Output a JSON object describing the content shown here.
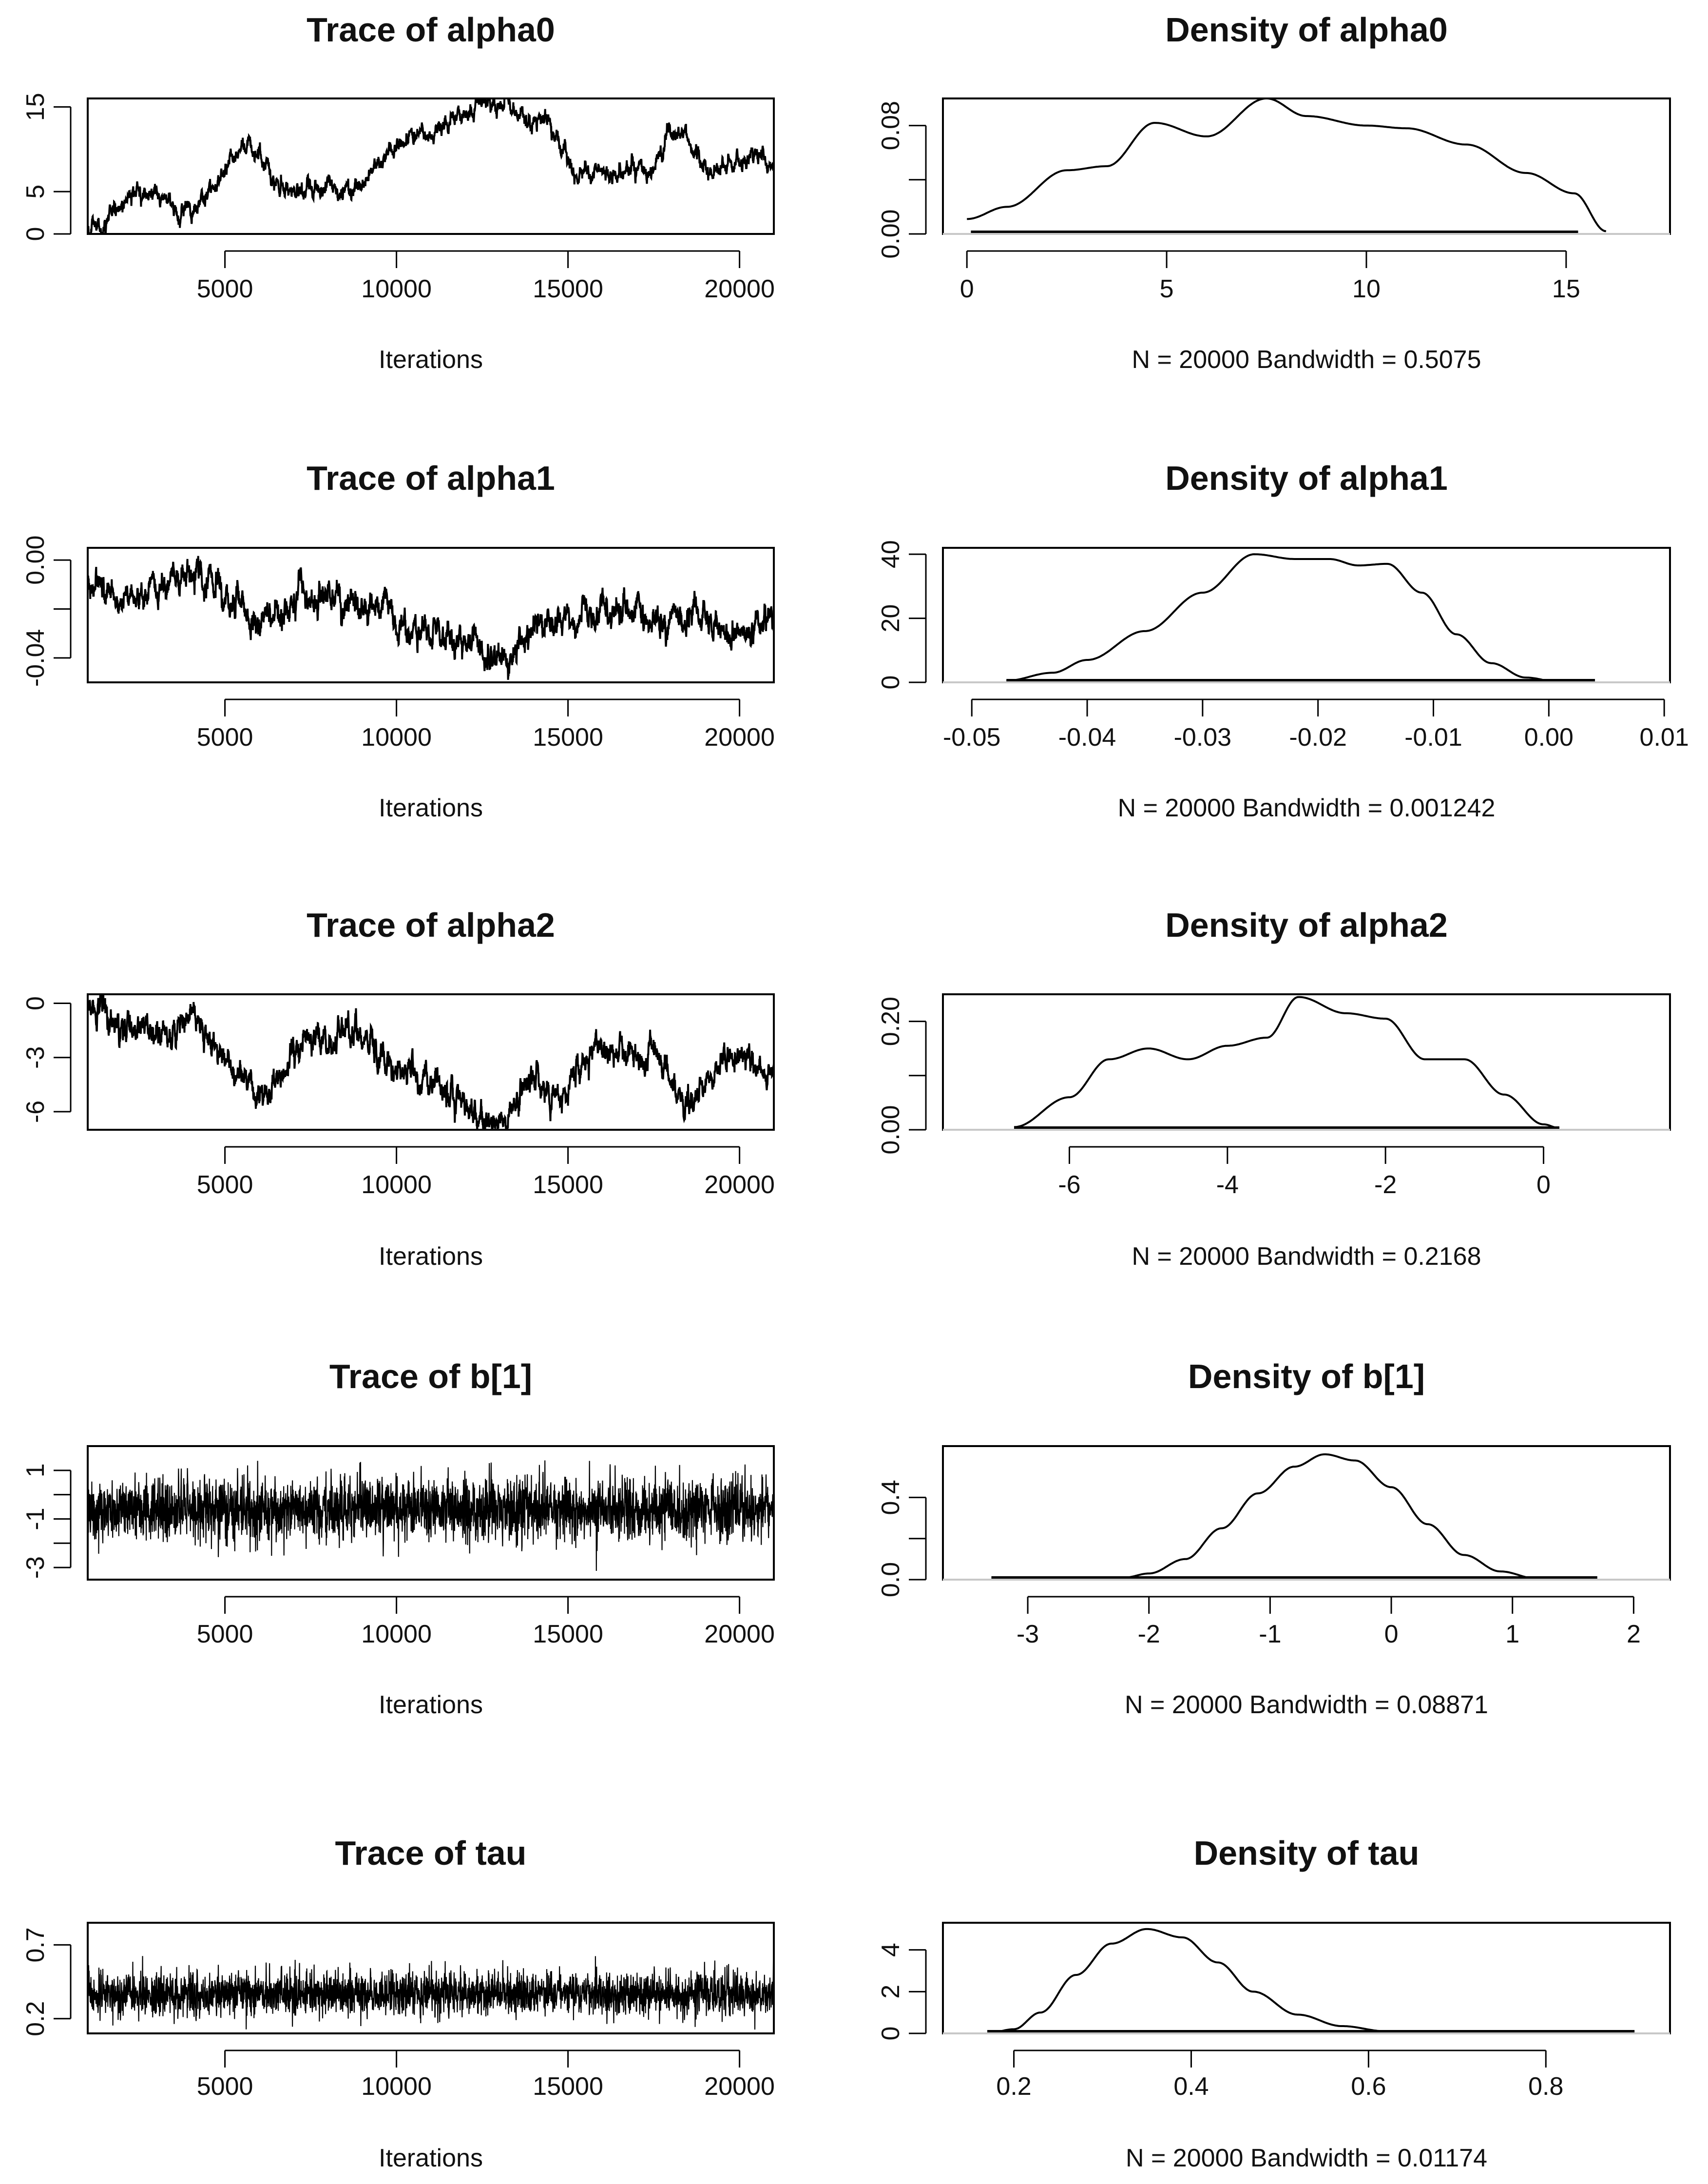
{
  "page": {
    "layout": "5 rows x 2 columns (trace plot | density plot)"
  },
  "chart_data": [
    {
      "type": "line",
      "kind": "trace",
      "title": "Trace of alpha0",
      "xlabel": "Iterations",
      "ylabel": "",
      "xlim": [
        1000,
        21000
      ],
      "ylim": [
        0,
        16
      ],
      "xticks": [
        5000,
        10000,
        15000,
        20000
      ],
      "xtick_labels": [
        "5000",
        "10000",
        "15000",
        "20000"
      ],
      "yticks": [
        0,
        5,
        15
      ],
      "ytick_labels": [
        "0",
        "5",
        "15"
      ],
      "anchors_x": [
        1000,
        2800,
        3800,
        5800,
        6800,
        8400,
        10800,
        12700,
        14300,
        15300,
        17400,
        18000,
        19400,
        20400,
        21000
      ],
      "anchors_y": [
        0.5,
        5,
        2.5,
        10.5,
        5,
        5.5,
        12,
        15.5,
        13.5,
        7,
        7.5,
        12,
        7.5,
        9.5,
        8
      ],
      "noise": 0.6
    },
    {
      "type": "line",
      "kind": "density",
      "title": "Density of alpha0",
      "xlabel": "N = 20000   Bandwidth = 0.5075",
      "ylabel": "",
      "xlim": [
        -0.6,
        17.6
      ],
      "ylim": [
        0,
        0.1
      ],
      "xticks": [
        0,
        5,
        10,
        15
      ],
      "xtick_labels": [
        "0",
        "5",
        "10",
        "15"
      ],
      "yticks": [
        0,
        0.04,
        0.08
      ],
      "ytick_labels": [
        "0.00",
        "",
        "0.08"
      ],
      "x": [
        0,
        1,
        2.5,
        3.5,
        4.7,
        6,
        7.5,
        8.5,
        10,
        11,
        12.5,
        14,
        15.2,
        16
      ],
      "y": [
        0.011,
        0.02,
        0.047,
        0.05,
        0.082,
        0.072,
        0.1,
        0.087,
        0.08,
        0.078,
        0.066,
        0.045,
        0.03,
        0.002
      ],
      "rug_from": 0.1,
      "rug_to": 15.3
    },
    {
      "type": "line",
      "kind": "trace",
      "title": "Trace of alpha1",
      "xlabel": "Iterations",
      "ylabel": "",
      "xlim": [
        1000,
        21000
      ],
      "ylim": [
        -0.05,
        0.005
      ],
      "xticks": [
        5000,
        10000,
        15000,
        20000
      ],
      "xtick_labels": [
        "5000",
        "10000",
        "15000",
        "20000"
      ],
      "yticks": [
        0,
        -0.02,
        -0.04
      ],
      "ytick_labels": [
        "0.00",
        "",
        "-0.04"
      ],
      "anchors_x": [
        1000,
        2000,
        4000,
        6000,
        7500,
        9000,
        11000,
        13000,
        14500,
        16500,
        18500,
        20000,
        21000
      ],
      "anchors_y": [
        -0.01,
        -0.015,
        -0.005,
        -0.025,
        -0.015,
        -0.018,
        -0.03,
        -0.04,
        -0.025,
        -0.02,
        -0.025,
        -0.03,
        -0.025
      ],
      "noise": 0.0035
    },
    {
      "type": "line",
      "kind": "density",
      "title": "Density of alpha1",
      "xlabel": "N = 20000   Bandwidth = 0.001242",
      "ylabel": "",
      "xlim": [
        -0.0525,
        0.0105
      ],
      "ylim": [
        0,
        42
      ],
      "xticks": [
        -0.05,
        -0.04,
        -0.03,
        -0.02,
        -0.01,
        0,
        0.01
      ],
      "xtick_labels": [
        "-0.05",
        "-0.04",
        "-0.03",
        "-0.02",
        "-0.01",
        "0.00",
        "0.01"
      ],
      "yticks": [
        0,
        20,
        40
      ],
      "ytick_labels": [
        "0",
        "20",
        "40"
      ],
      "x": [
        -0.047,
        -0.043,
        -0.04,
        -0.035,
        -0.03,
        -0.0255,
        -0.022,
        -0.019,
        -0.0165,
        -0.014,
        -0.011,
        -0.008,
        -0.005,
        -0.002,
        0.001
      ],
      "y": [
        0.5,
        3,
        7,
        16,
        28,
        40,
        38.5,
        38.5,
        36.5,
        37,
        28,
        15,
        6,
        1.5,
        0
      ],
      "rug_from": -0.047,
      "rug_to": 0.004
    },
    {
      "type": "line",
      "kind": "trace",
      "title": "Trace of alpha2",
      "xlabel": "Iterations",
      "ylabel": "",
      "xlim": [
        1000,
        21000
      ],
      "ylim": [
        -7,
        0.5
      ],
      "xticks": [
        5000,
        10000,
        15000,
        20000
      ],
      "xtick_labels": [
        "5000",
        "10000",
        "15000",
        "20000"
      ],
      "yticks": [
        0,
        -3,
        -6
      ],
      "ytick_labels": [
        "0",
        "-3",
        "-6"
      ],
      "anchors_x": [
        1000,
        2500,
        3800,
        6000,
        7500,
        9000,
        10500,
        12800,
        14000,
        14500,
        16000,
        17500,
        18500,
        19700,
        21000
      ],
      "anchors_y": [
        0,
        -1.5,
        -1,
        -5,
        -2,
        -2,
        -4,
        -6.5,
        -4.5,
        -5.5,
        -2.5,
        -3,
        -5.5,
        -3,
        -3.5
      ],
      "noise": 0.45
    },
    {
      "type": "line",
      "kind": "density",
      "title": "Density of alpha2",
      "xlabel": "N = 20000   Bandwidth = 0.2168",
      "ylabel": "",
      "xlim": [
        -7.6,
        1.6
      ],
      "ylim": [
        0,
        0.25
      ],
      "xticks": [
        -6,
        -4,
        -2,
        0
      ],
      "xtick_labels": [
        "-6",
        "-4",
        "-2",
        "0"
      ],
      "yticks": [
        0,
        0.1,
        0.2
      ],
      "ytick_labels": [
        "0.00",
        "",
        "0.20"
      ],
      "x": [
        -6.7,
        -6,
        -5.5,
        -5,
        -4.5,
        -4,
        -3.5,
        -3.1,
        -2.5,
        -2,
        -1.5,
        -1,
        -0.5,
        0,
        0.2
      ],
      "y": [
        0.005,
        0.06,
        0.13,
        0.15,
        0.13,
        0.155,
        0.17,
        0.245,
        0.215,
        0.205,
        0.13,
        0.13,
        0.065,
        0.01,
        0.003
      ],
      "rug_from": -6.7,
      "rug_to": 0.2
    },
    {
      "type": "line",
      "kind": "trace",
      "title": "Trace of b[1]",
      "xlabel": "Iterations",
      "ylabel": "",
      "xlim": [
        1000,
        21000
      ],
      "ylim": [
        -3.5,
        2
      ],
      "xticks": [
        5000,
        10000,
        15000,
        20000
      ],
      "xtick_labels": [
        "5000",
        "10000",
        "15000",
        "20000"
      ],
      "yticks": [
        1,
        0,
        -1,
        -2,
        -3
      ],
      "ytick_labels": [
        "1",
        "",
        "-1",
        "",
        "-3"
      ],
      "mean": -0.6,
      "sd": 0.65,
      "mode": "dense"
    },
    {
      "type": "line",
      "kind": "density",
      "title": "Density of b[1]",
      "xlabel": "N = 20000   Bandwidth = 0.08871",
      "ylabel": "",
      "xlim": [
        -3.7,
        2.3
      ],
      "ylim": [
        0,
        0.65
      ],
      "xticks": [
        -3,
        -2,
        -1,
        0,
        1,
        2
      ],
      "xtick_labels": [
        "-3",
        "-2",
        "-1",
        "0",
        "1",
        "2"
      ],
      "yticks": [
        0,
        0.2,
        0.4
      ],
      "ytick_labels": [
        "0.0",
        "",
        "0.4"
      ],
      "x": [
        -2.6,
        -2.2,
        -2,
        -1.7,
        -1.4,
        -1.1,
        -0.8,
        -0.55,
        -0.3,
        0,
        0.3,
        0.6,
        0.9,
        1.2,
        1.4
      ],
      "y": [
        0,
        0.01,
        0.03,
        0.1,
        0.25,
        0.42,
        0.55,
        0.61,
        0.58,
        0.45,
        0.27,
        0.12,
        0.04,
        0.005,
        0
      ],
      "rug_from": -3.3,
      "rug_to": 1.7
    },
    {
      "type": "line",
      "kind": "trace",
      "title": "Trace of tau",
      "xlabel": "Iterations",
      "ylabel": "",
      "xlim": [
        1000,
        21000
      ],
      "ylim": [
        0.1,
        0.85
      ],
      "xticks": [
        5000,
        10000,
        15000,
        20000
      ],
      "xtick_labels": [
        "5000",
        "10000",
        "15000",
        "20000"
      ],
      "yticks": [
        0.2,
        0.7
      ],
      "ytick_labels": [
        "0.2",
        "0.7"
      ],
      "mean": 0.37,
      "sd": 0.075,
      "mode": "dense"
    },
    {
      "type": "line",
      "kind": "density",
      "title": "Density of tau",
      "xlabel": "N = 20000   Bandwidth = 0.01174",
      "ylabel": "",
      "xlim": [
        0.12,
        0.94
      ],
      "ylim": [
        0,
        5.3
      ],
      "xticks": [
        0.2,
        0.4,
        0.6,
        0.8
      ],
      "xtick_labels": [
        "0.2",
        "0.4",
        "0.6",
        "0.8"
      ],
      "yticks": [
        0,
        2,
        4
      ],
      "ytick_labels": [
        "0",
        "2",
        "4"
      ],
      "x": [
        0.17,
        0.2,
        0.23,
        0.27,
        0.31,
        0.35,
        0.39,
        0.43,
        0.47,
        0.52,
        0.57,
        0.62,
        0.67,
        0.7
      ],
      "y": [
        0,
        0.2,
        1.0,
        2.8,
        4.3,
        5.0,
        4.6,
        3.4,
        2.0,
        0.9,
        0.35,
        0.1,
        0.03,
        0
      ],
      "rug_from": 0.17,
      "rug_to": 0.9
    }
  ]
}
